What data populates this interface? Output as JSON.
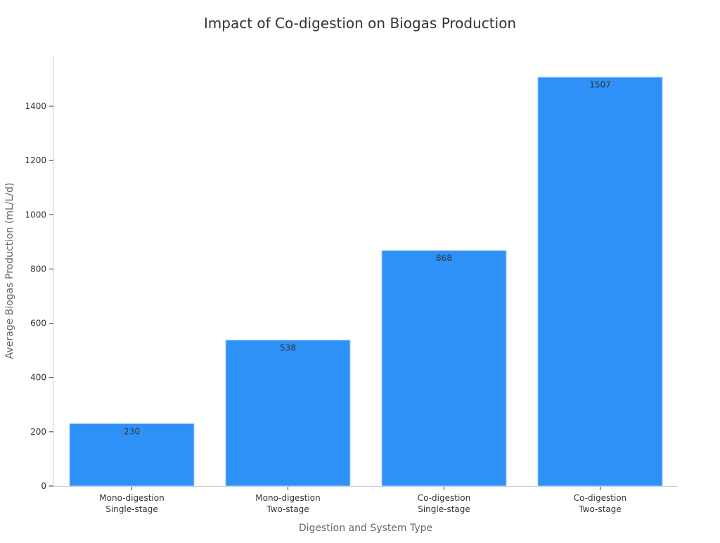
{
  "chart_data": {
    "type": "bar",
    "title": "Impact of Co-digestion on Biogas Production",
    "xlabel": "Digestion and System Type",
    "ylabel": "Average Biogas Production (mL/L/d)",
    "categories": [
      [
        "Mono-digestion",
        "Single-stage"
      ],
      [
        "Mono-digestion",
        "Two-stage"
      ],
      [
        "Co-digestion",
        "Single-stage"
      ],
      [
        "Co-digestion",
        "Two-stage"
      ]
    ],
    "values": [
      230,
      538,
      868,
      1507
    ],
    "data_labels": [
      "230",
      "538",
      "868",
      "1507"
    ],
    "yticks": [
      0,
      200,
      400,
      600,
      800,
      1000,
      1200,
      1400
    ],
    "ylim": [
      0,
      1580
    ],
    "grid": false,
    "bar_color": "#2e91f7",
    "bar_edge_color": "#a9d0fb"
  }
}
